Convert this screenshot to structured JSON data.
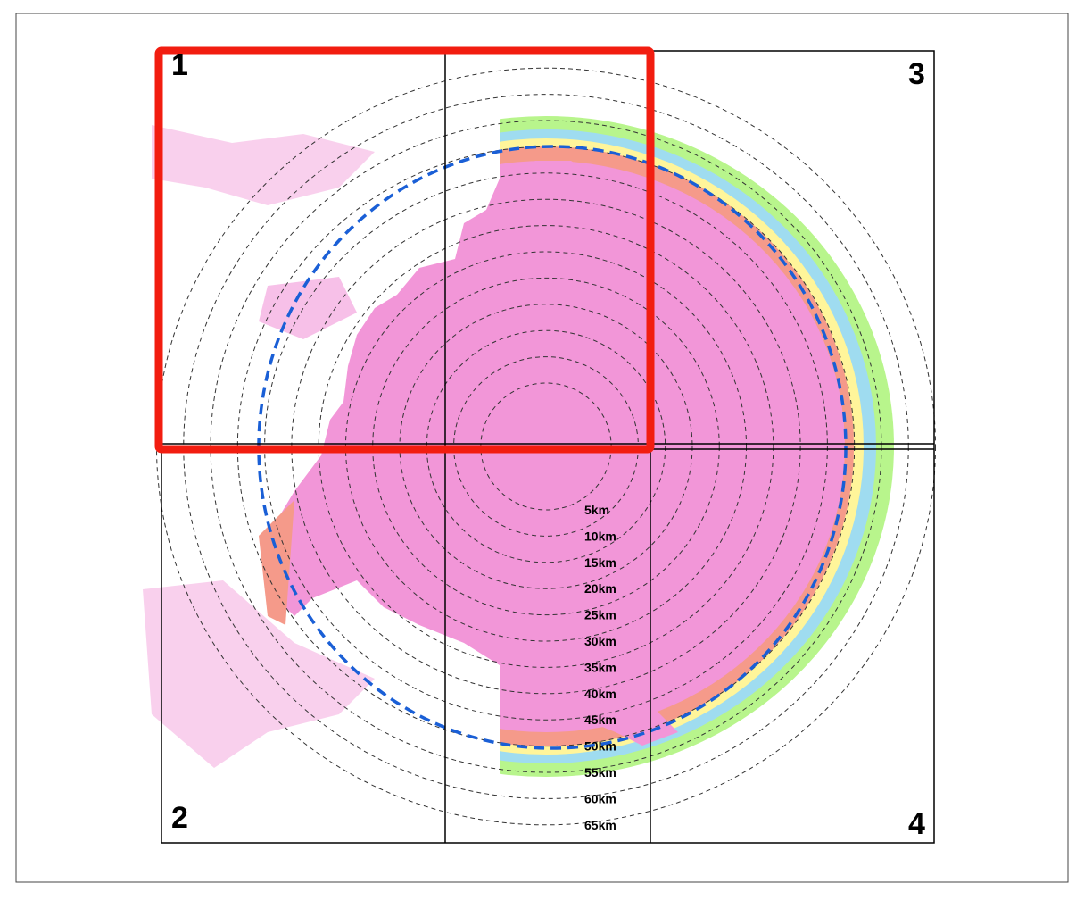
{
  "quadrants": [
    "1",
    "2",
    "3",
    "4"
  ],
  "rings": [
    "5km",
    "10km",
    "15km",
    "20km",
    "25km",
    "30km",
    "35km",
    "40km",
    "45km",
    "50km",
    "55km",
    "60km",
    "65km"
  ]
}
